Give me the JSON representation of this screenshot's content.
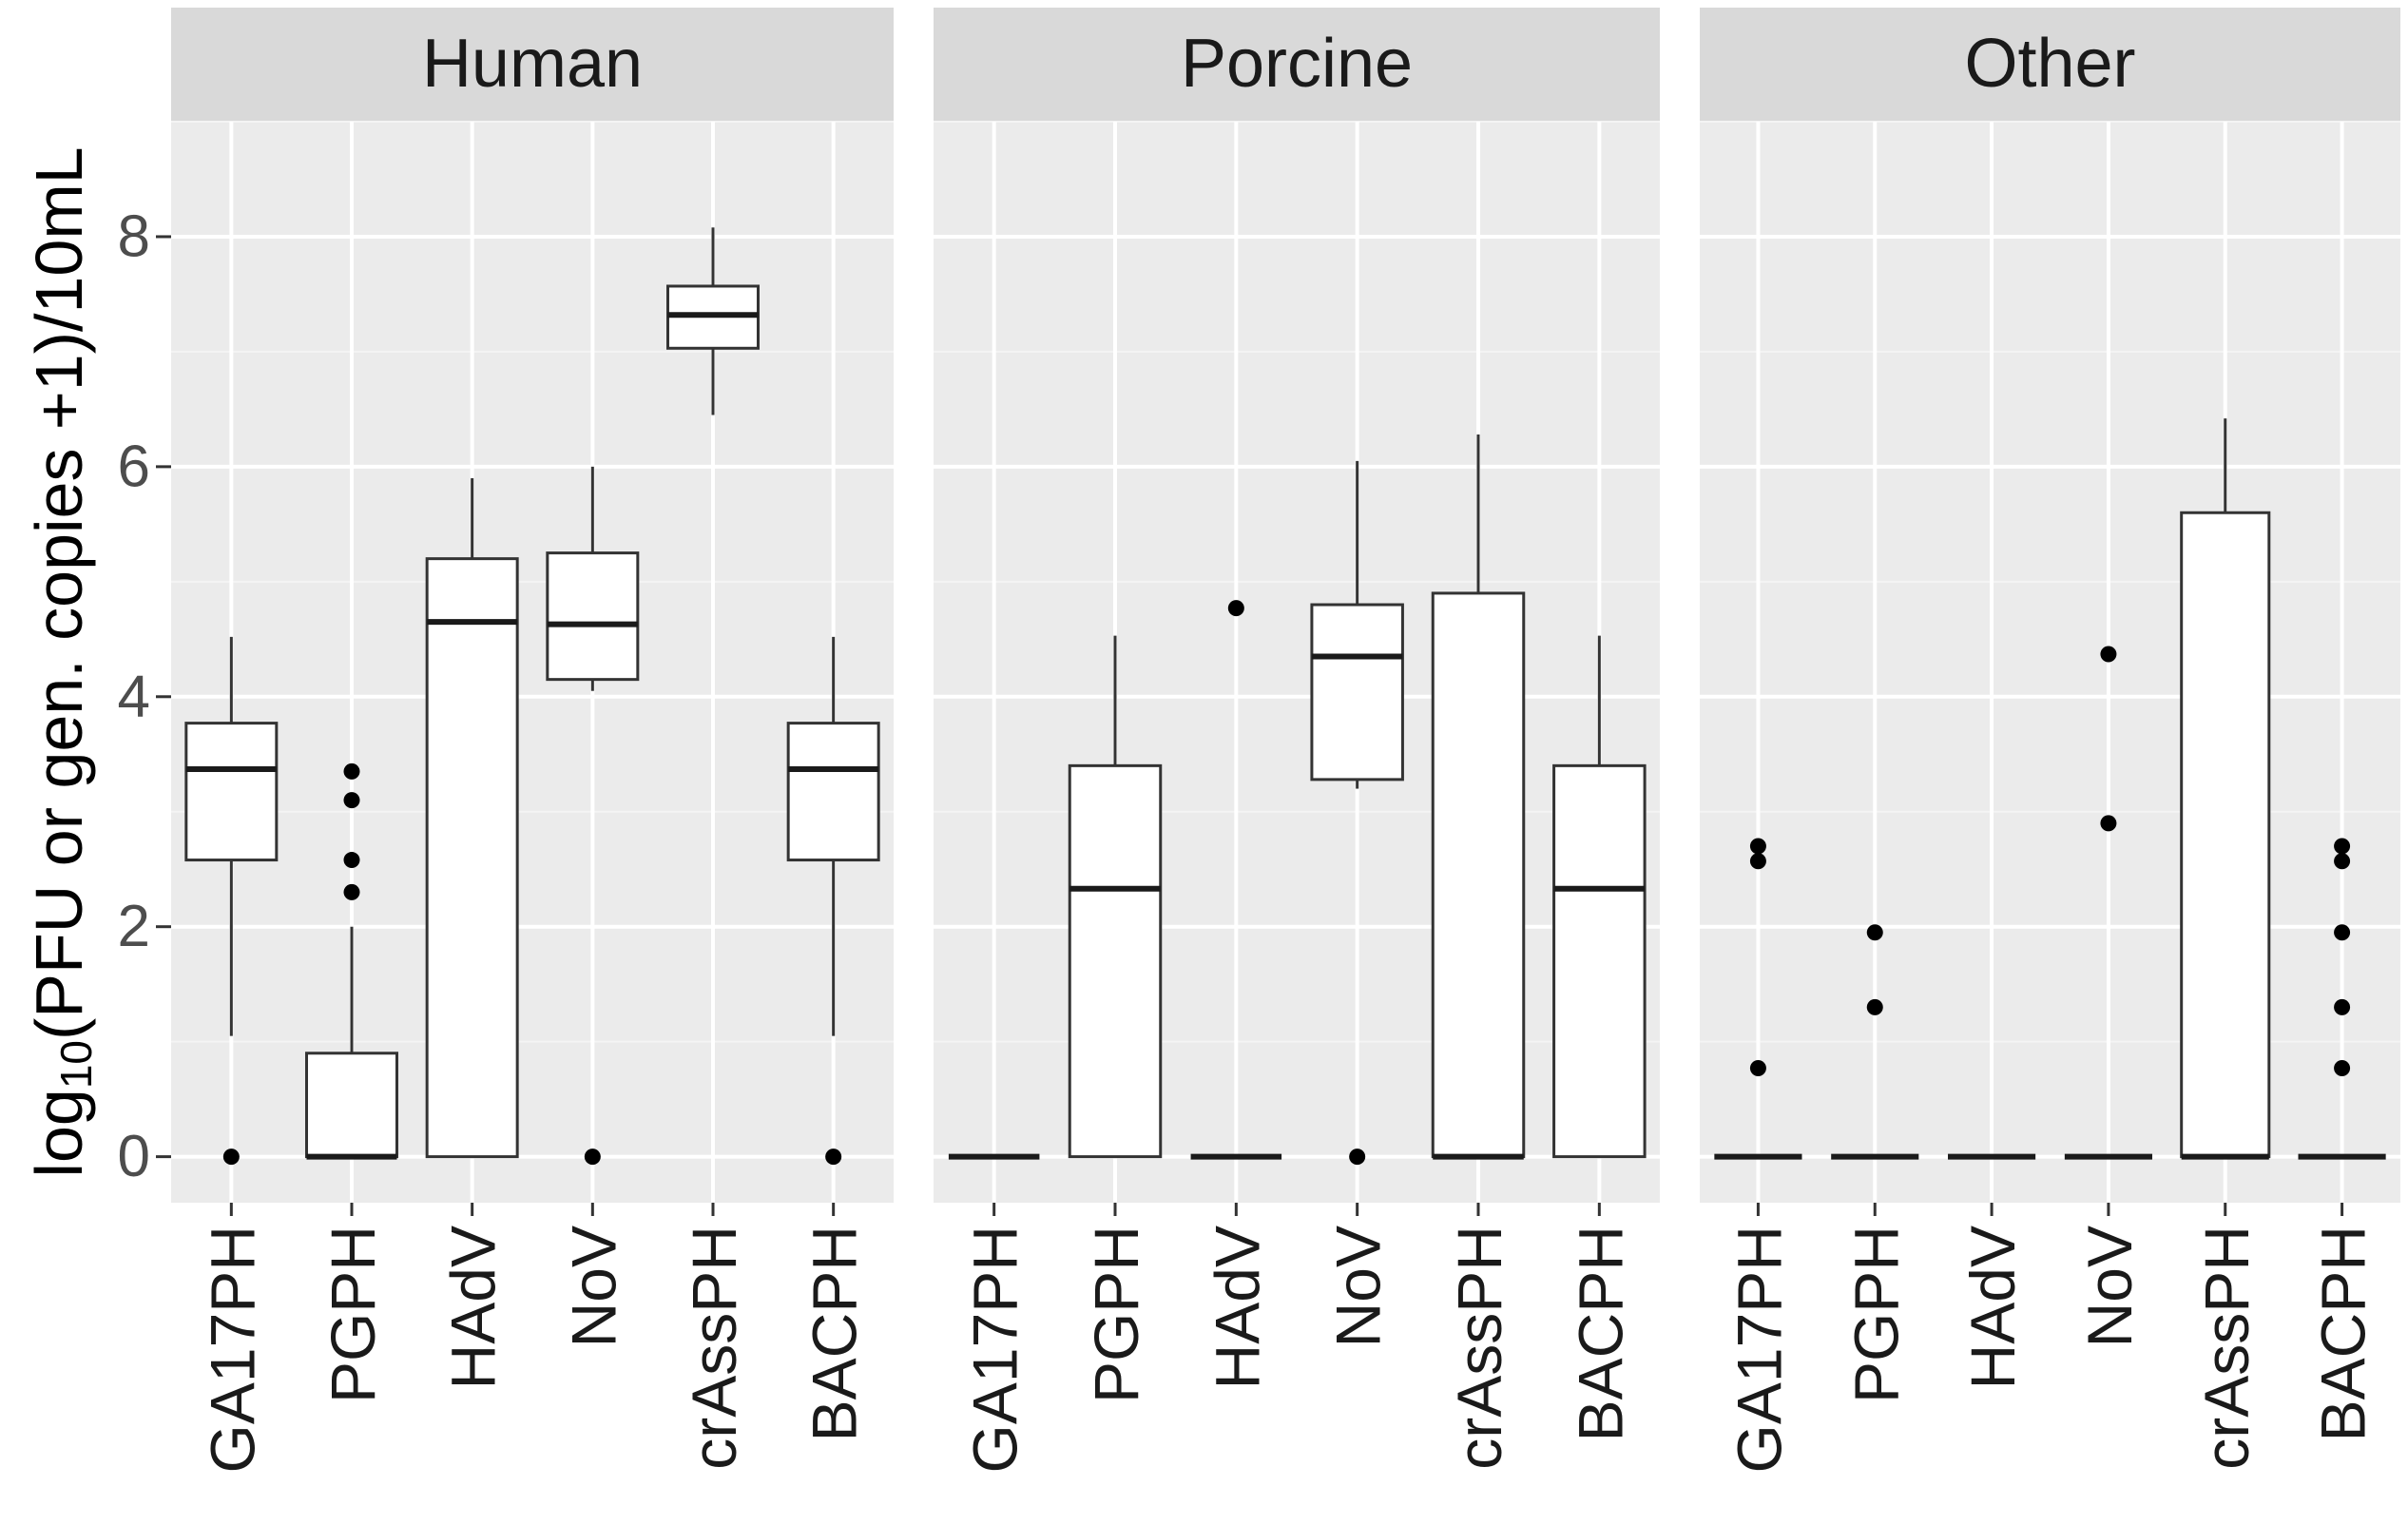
{
  "chart_data": {
    "type": "boxplot",
    "ylabel": {
      "prefix": "log",
      "subscript": "10",
      "rest": "(PFU or gen. copies +1)/10mL"
    },
    "ylim": [
      -0.4,
      9.0
    ],
    "yticks": [
      0,
      2,
      4,
      6,
      8
    ],
    "colors": {
      "panel": "#ebebeb",
      "strip": "#d9d9d9",
      "grid_major": "#ffffff",
      "box_fill": "#ffffff",
      "box_line": "#333333",
      "point": "#000000"
    },
    "categories": [
      "GA17PH",
      "PGPH",
      "HAdV",
      "NoV",
      "crAssPH",
      "BACPH"
    ],
    "facets": [
      {
        "name": "Human",
        "boxes": [
          {
            "category": "GA17PH",
            "lower_whisker": 1.05,
            "q1": 2.58,
            "median": 3.37,
            "q3": 3.77,
            "upper_whisker": 4.52,
            "outliers": [
              0
            ]
          },
          {
            "category": "PGPH",
            "lower_whisker": 0,
            "q1": 0,
            "median": 0,
            "q3": 0.9,
            "upper_whisker": 2.0,
            "outliers": [
              2.3,
              2.58,
              3.1,
              3.35
            ]
          },
          {
            "category": "HAdV",
            "lower_whisker": 0,
            "q1": 0,
            "median": 4.65,
            "q3": 5.2,
            "upper_whisker": 5.9,
            "outliers": []
          },
          {
            "category": "NoV",
            "lower_whisker": 4.05,
            "q1": 4.15,
            "median": 4.63,
            "q3": 5.25,
            "upper_whisker": 6.0,
            "outliers": [
              0
            ]
          },
          {
            "category": "crAssPH",
            "lower_whisker": 6.45,
            "q1": 7.03,
            "median": 7.32,
            "q3": 7.57,
            "upper_whisker": 8.08,
            "outliers": []
          },
          {
            "category": "BACPH",
            "lower_whisker": 1.05,
            "q1": 2.58,
            "median": 3.37,
            "q3": 3.77,
            "upper_whisker": 4.52,
            "outliers": [
              0
            ]
          }
        ]
      },
      {
        "name": "Porcine",
        "boxes": [
          {
            "category": "GA17PH",
            "lower_whisker": 0,
            "q1": 0,
            "median": 0,
            "q3": 0,
            "upper_whisker": 0,
            "outliers": []
          },
          {
            "category": "PGPH",
            "lower_whisker": 0,
            "q1": 0,
            "median": 2.33,
            "q3": 3.4,
            "upper_whisker": 4.53,
            "outliers": []
          },
          {
            "category": "HAdV",
            "lower_whisker": 0,
            "q1": 0,
            "median": 0,
            "q3": 0,
            "upper_whisker": 0,
            "outliers": [
              4.77
            ]
          },
          {
            "category": "NoV",
            "lower_whisker": 3.2,
            "q1": 3.28,
            "median": 4.35,
            "q3": 4.8,
            "upper_whisker": 6.05,
            "outliers": [
              0
            ]
          },
          {
            "category": "crAssPH",
            "lower_whisker": 0,
            "q1": 0,
            "median": 0,
            "q3": 4.9,
            "upper_whisker": 6.28,
            "outliers": []
          },
          {
            "category": "BACPH",
            "lower_whisker": 0,
            "q1": 0,
            "median": 2.33,
            "q3": 3.4,
            "upper_whisker": 4.53,
            "outliers": []
          }
        ]
      },
      {
        "name": "Other",
        "boxes": [
          {
            "category": "GA17PH",
            "lower_whisker": 0,
            "q1": 0,
            "median": 0,
            "q3": 0,
            "upper_whisker": 0,
            "outliers": [
              0.77,
              2.57,
              2.7
            ]
          },
          {
            "category": "PGPH",
            "lower_whisker": 0,
            "q1": 0,
            "median": 0,
            "q3": 0,
            "upper_whisker": 0,
            "outliers": [
              1.3,
              1.95
            ]
          },
          {
            "category": "HAdV",
            "lower_whisker": 0,
            "q1": 0,
            "median": 0,
            "q3": 0,
            "upper_whisker": 0,
            "outliers": []
          },
          {
            "category": "NoV",
            "lower_whisker": 0,
            "q1": 0,
            "median": 0,
            "q3": 0,
            "upper_whisker": 0,
            "outliers": [
              2.9,
              4.37
            ]
          },
          {
            "category": "crAssPH",
            "lower_whisker": 0,
            "q1": 0,
            "median": 0,
            "q3": 5.6,
            "upper_whisker": 6.42,
            "outliers": []
          },
          {
            "category": "BACPH",
            "lower_whisker": 0,
            "q1": 0,
            "median": 0,
            "q3": 0,
            "upper_whisker": 0,
            "outliers": [
              0.77,
              1.3,
              1.95,
              2.57,
              2.7
            ]
          }
        ]
      }
    ]
  }
}
